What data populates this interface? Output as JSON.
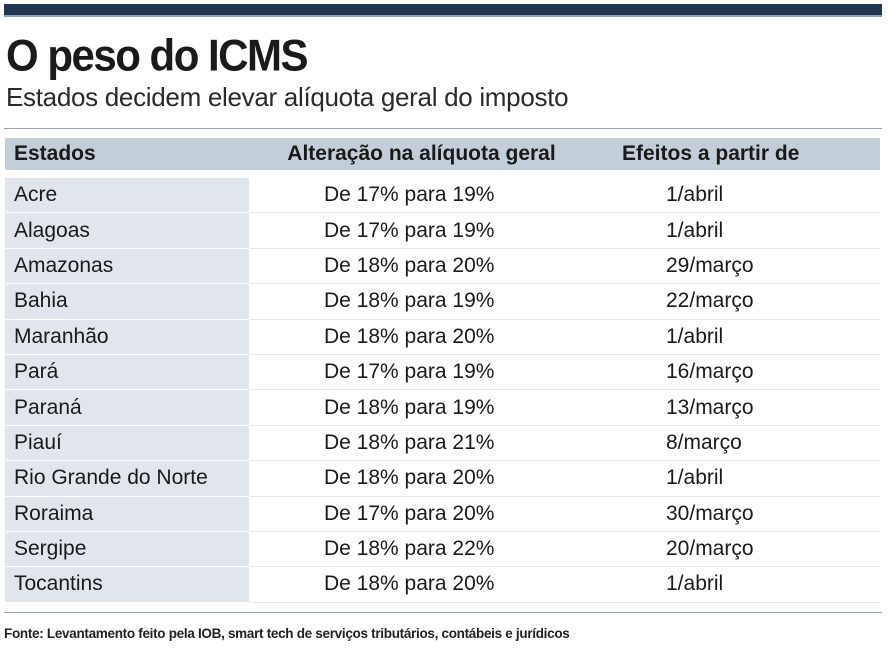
{
  "header": {
    "title": "O peso do ICMS",
    "subtitle": "Estados decidem elevar alíquota geral do imposto"
  },
  "table": {
    "columns": [
      "Estados",
      "Alteração na alíquota geral",
      "Efeitos a partir de"
    ],
    "rows": [
      [
        "Acre",
        "De 17% para 19%",
        "1/abril"
      ],
      [
        "Alagoas",
        "De 17% para 19%",
        "1/abril"
      ],
      [
        "Amazonas",
        "De 18% para 20%",
        "29/março"
      ],
      [
        "Bahia",
        "De 18% para 19%",
        "22/março"
      ],
      [
        "Maranhão",
        "De 18% para 20%",
        "1/abril"
      ],
      [
        "Pará",
        "De 17% para 19%",
        "16/março"
      ],
      [
        "Paraná",
        "De 18% para 19%",
        "13/março"
      ],
      [
        "Piauí",
        "De 18% para 21%",
        "8/março"
      ],
      [
        "Rio Grande do Norte",
        "De 18% para 20%",
        "1/abril"
      ],
      [
        "Roraima",
        "De 17% para 20%",
        "30/março"
      ],
      [
        "Sergipe",
        "De 18% para 22%",
        "20/março"
      ],
      [
        "Tocantins",
        "De 18% para 20%",
        "1/abril"
      ]
    ]
  },
  "footer": {
    "source": "Fonte: Levantamento feito pela IOB, smart tech de serviços tributários, contábeis e jurídicos"
  }
}
